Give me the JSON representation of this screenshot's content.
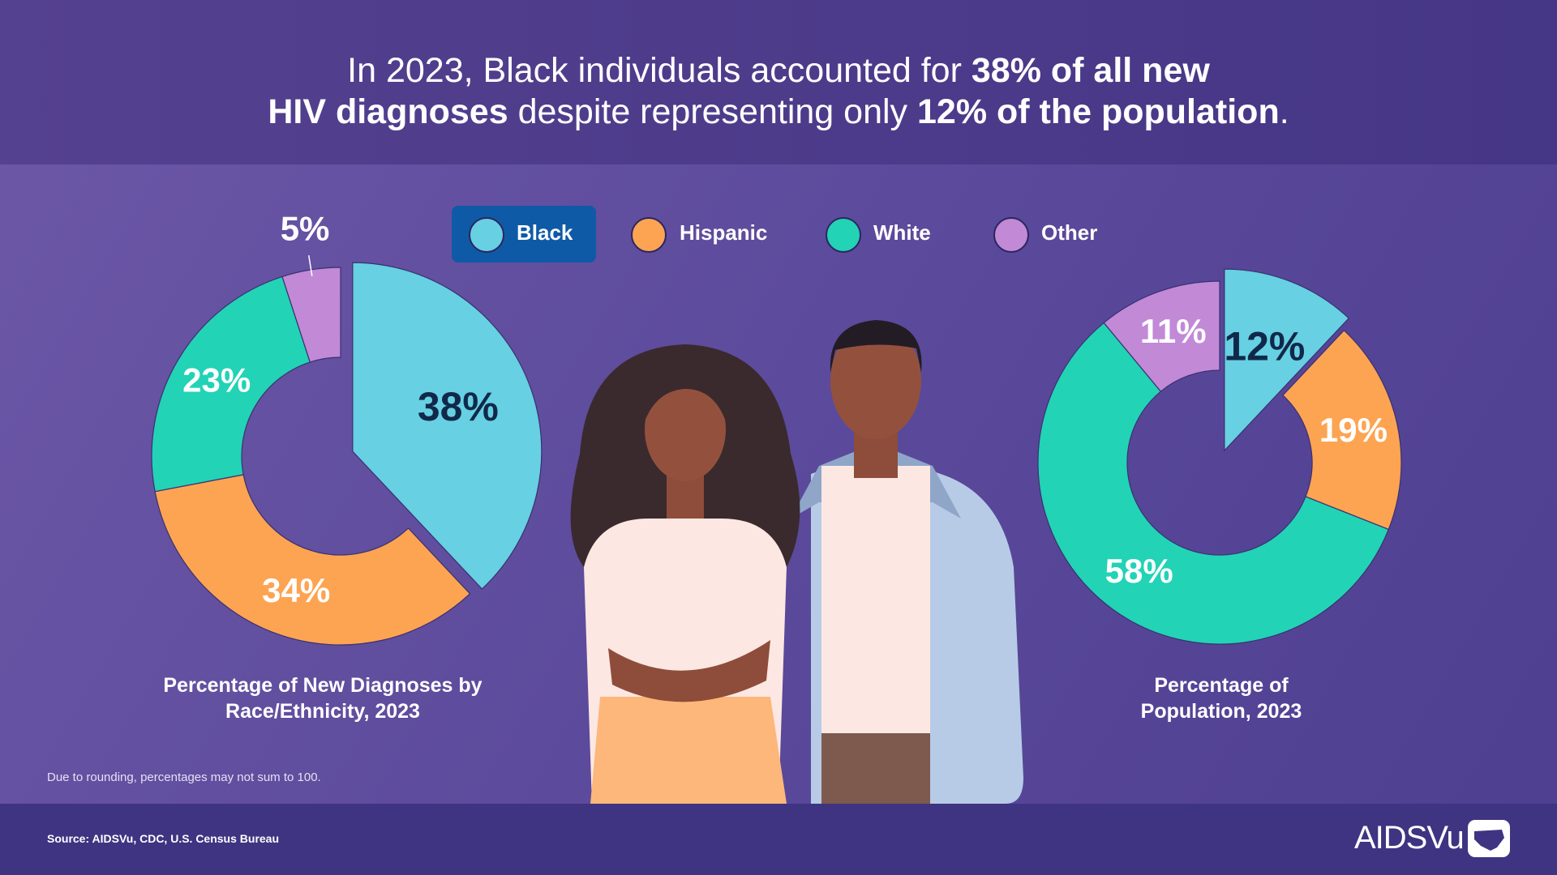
{
  "headline": [
    {
      "text": "In 2023, Black individuals accounted for ",
      "bold": false
    },
    {
      "text": "38% of all new",
      "bold": true
    },
    {
      "text": "HIV diagnoses",
      "bold": true,
      "newline": true
    },
    {
      "text": " despite representing only ",
      "bold": false
    },
    {
      "text": "12% of the population",
      "bold": true
    },
    {
      "text": ".",
      "bold": false
    }
  ],
  "chart_data": [
    {
      "type": "pie",
      "title": "Percentage of New Diagnoses by Race/Ethnicity, 2023",
      "categories": [
        "Black",
        "Hispanic",
        "White",
        "Other"
      ],
      "values": [
        38,
        34,
        23,
        5
      ],
      "value_labels": [
        "38%",
        "34%",
        "23%",
        "5%"
      ],
      "colors": [
        "#67d0e3",
        "#fda452",
        "#22d3b6",
        "#c189d6"
      ],
      "explode": [
        true,
        false,
        false,
        false
      ]
    },
    {
      "type": "pie",
      "title": "Percentage of Population, 2023",
      "categories": [
        "Black",
        "Hispanic",
        "White",
        "Other"
      ],
      "values": [
        12,
        19,
        58,
        11
      ],
      "value_labels": [
        "12%",
        "19%",
        "58%",
        "11%"
      ],
      "colors": [
        "#67d0e3",
        "#fda452",
        "#22d3b6",
        "#c189d6"
      ],
      "explode": [
        true,
        false,
        false,
        false
      ]
    }
  ],
  "footnote": "Due to rounding, percentages may not sum to 100.",
  "source": "Source: AIDSVu, CDC, U.S. Census Bureau",
  "logo": "AIDSVu"
}
